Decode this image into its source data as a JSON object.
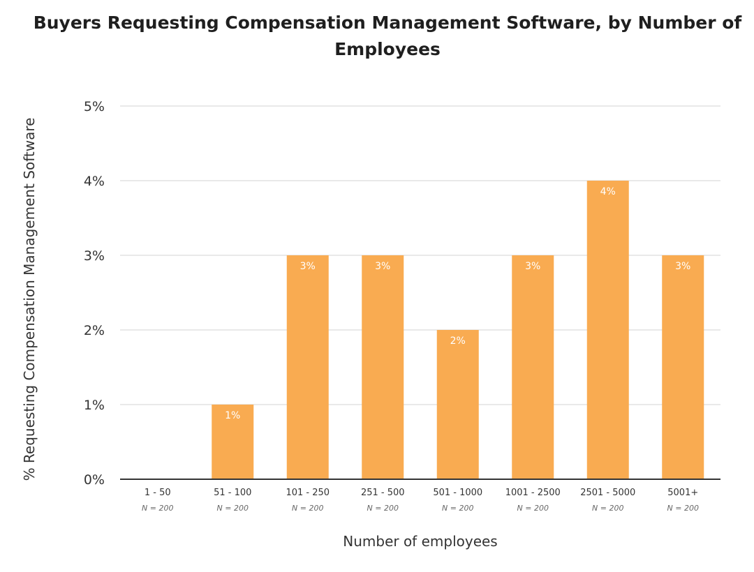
{
  "chart_data": {
    "type": "bar",
    "title": "Buyers Requesting Compensation Management Software, by Number of Employees",
    "xlabel": "Number of employees",
    "ylabel": "% Requesting Compensation Management Software",
    "categories": [
      "1 - 50",
      "51 - 100",
      "101 - 250",
      "251 - 500",
      "501 - 1000",
      "1001 - 2500",
      "2501 - 5000",
      "5001+"
    ],
    "category_notes": [
      "N = 200",
      "N = 200",
      "N = 200",
      "N = 200",
      "N = 200",
      "N = 200",
      "N = 200",
      "N = 200"
    ],
    "values": [
      0,
      1,
      3,
      3,
      2,
      3,
      4,
      3
    ],
    "data_labels": [
      "",
      "1%",
      "3%",
      "3%",
      "2%",
      "3%",
      "4%",
      "3%"
    ],
    "ylim": [
      0,
      5
    ],
    "yticks": [
      0,
      1,
      2,
      3,
      4,
      5
    ],
    "ytick_labels": [
      "0%",
      "1%",
      "2%",
      "3%",
      "4%",
      "5%"
    ],
    "grid": true,
    "legend": "none",
    "bar_color": "#f9ab51",
    "grid_color": "#e2e2e2",
    "axis_color": "#333333"
  }
}
